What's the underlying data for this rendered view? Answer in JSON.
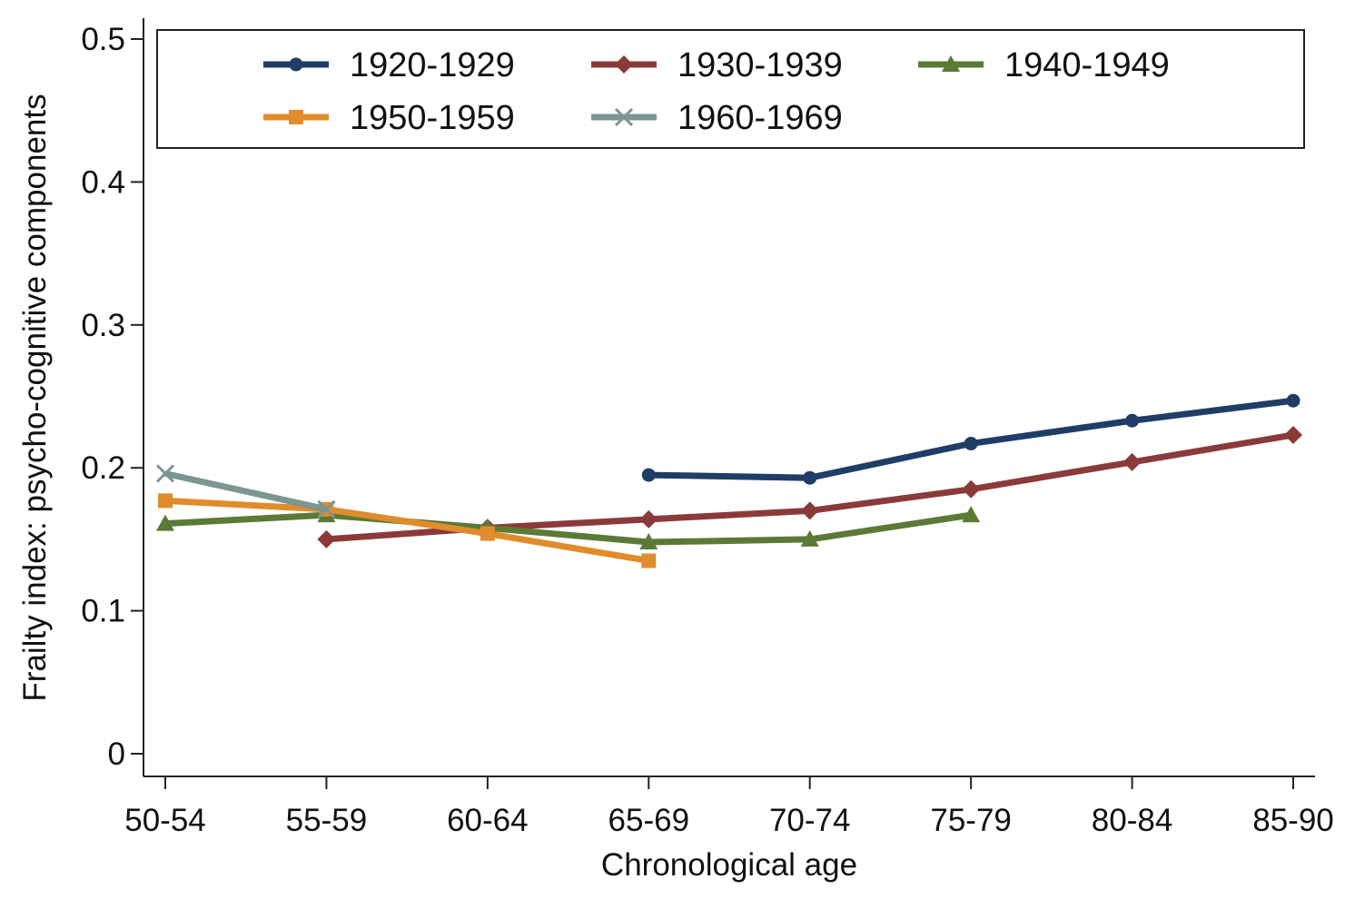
{
  "chart_data": {
    "type": "line",
    "title": "",
    "xlabel": "Chronological age",
    "ylabel": "Frailty index: psycho-cognitive components",
    "categories": [
      "50-54",
      "55-59",
      "60-64",
      "65-69",
      "70-74",
      "75-79",
      "80-84",
      "85-90"
    ],
    "ylim": [
      0,
      0.5
    ],
    "yticks": [
      0,
      0.1,
      0.2,
      0.3,
      0.4,
      0.5
    ],
    "ytick_labels": [
      "0",
      "0.1",
      "0.2",
      "0.3",
      "0.4",
      "0.5"
    ],
    "grid": false,
    "legend_position": "top",
    "series": [
      {
        "name": "1920-1929",
        "color": "#1f3d66",
        "marker": "circle",
        "values": [
          null,
          null,
          null,
          0.195,
          0.193,
          0.217,
          0.233,
          0.247
        ]
      },
      {
        "name": "1930-1939",
        "color": "#8b3a3a",
        "marker": "diamond",
        "values": [
          null,
          0.15,
          0.158,
          0.164,
          0.17,
          0.185,
          0.204,
          0.223
        ]
      },
      {
        "name": "1940-1949",
        "color": "#5a7a36",
        "marker": "triangle",
        "values": [
          0.161,
          0.167,
          0.158,
          0.148,
          0.15,
          0.167,
          null,
          null
        ]
      },
      {
        "name": "1950-1959",
        "color": "#e08c2c",
        "marker": "square",
        "values": [
          0.177,
          0.171,
          0.154,
          0.135,
          null,
          null,
          null,
          null
        ]
      },
      {
        "name": "1960-1969",
        "color": "#7b9690",
        "marker": "x",
        "values": [
          0.196,
          0.171,
          null,
          null,
          null,
          null,
          null,
          null
        ]
      }
    ]
  }
}
